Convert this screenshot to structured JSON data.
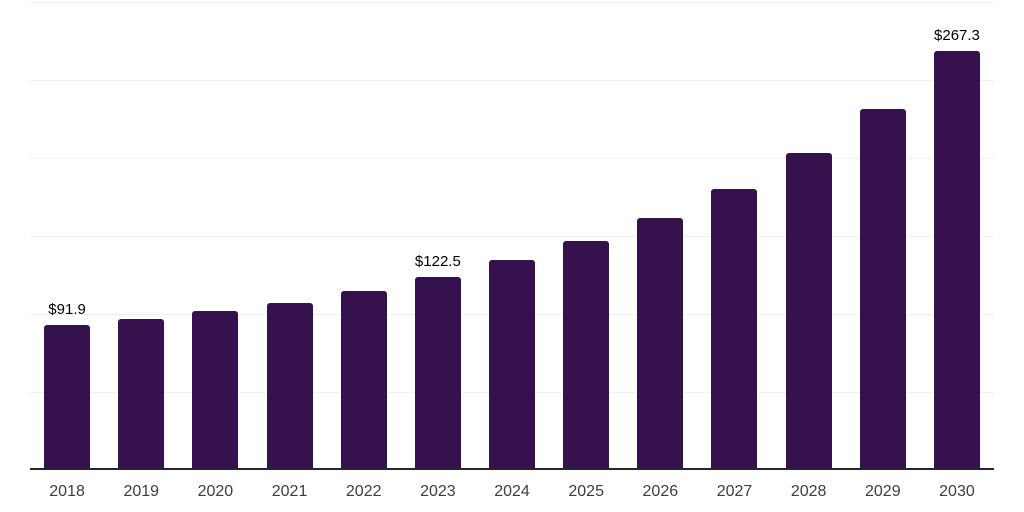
{
  "chart_data": {
    "type": "bar",
    "title": "",
    "xlabel": "",
    "ylabel": "",
    "categories": [
      "2018",
      "2019",
      "2020",
      "2021",
      "2022",
      "2023",
      "2024",
      "2025",
      "2026",
      "2027",
      "2028",
      "2029",
      "2030"
    ],
    "values": [
      91.9,
      95.5,
      100.6,
      106.1,
      113.5,
      122.5,
      133.3,
      145.5,
      160.3,
      178.8,
      201.9,
      230.4,
      267.3
    ],
    "data_labels": {
      "2018": "$91.9",
      "2023": "$122.5",
      "2030": "$267.3"
    },
    "ylim": [
      0,
      300
    ],
    "gridline_step": 50,
    "grid": "horizontal",
    "legend": "none",
    "y_tick_labels_visible": false,
    "style": {
      "bar_color": "#35124E",
      "grid_color": "#f0f0f0",
      "axis_line_color": "#262626",
      "tick_label_color": "#3d3d3d",
      "value_label_color": "#000000",
      "background_color": "#ffffff"
    }
  }
}
